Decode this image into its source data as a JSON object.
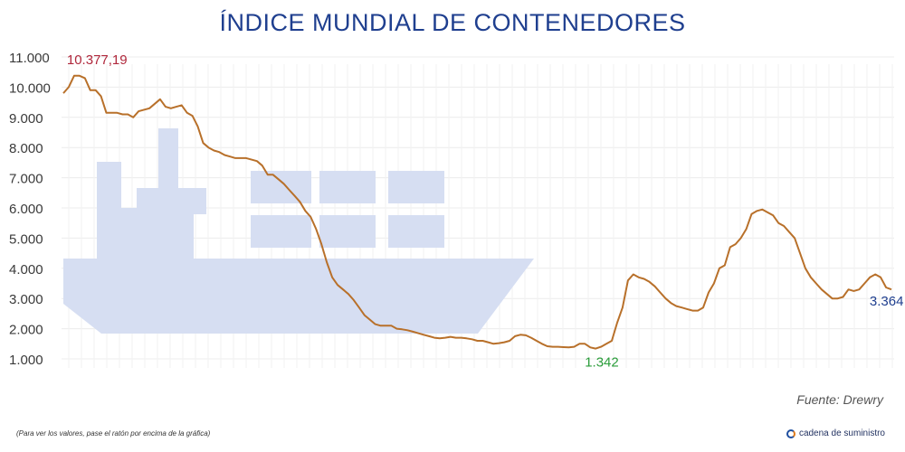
{
  "title": "ÍNDICE MUNDIAL DE CONTENEDORES",
  "source": "Fuente: Drewry",
  "footnote": "(Para ver los valores, pase el ratón por encima de la gráfica)",
  "brand": "cadena de suministro",
  "chart_data": {
    "type": "line",
    "title": "ÍNDICE MUNDIAL DE CONTENEDORES",
    "xlabel": "",
    "ylabel": "",
    "ylim": [
      1000,
      11000
    ],
    "yticks": [
      1000,
      2000,
      3000,
      4000,
      5000,
      6000,
      7000,
      8000,
      9000,
      10000,
      11000
    ],
    "ytick_labels": [
      "1.000",
      "2.000",
      "3.000",
      "4.000",
      "5.000",
      "6.000",
      "7.000",
      "8.000",
      "9.000",
      "10.000",
      "11.000"
    ],
    "grid": true,
    "line_color": "#b8702a",
    "series": [
      {
        "values": [
          9800,
          10000,
          10377,
          10377,
          10300,
          9900,
          9900,
          9700,
          9150,
          9150,
          9150,
          9100,
          9100,
          9000,
          9200,
          9250,
          9300,
          9450,
          9600,
          9350,
          9300,
          9350,
          9400,
          9150,
          9050,
          8700,
          8150,
          8000,
          7900,
          7850,
          7750,
          7700,
          7650,
          7650,
          7650,
          7600,
          7550,
          7400,
          7100,
          7100,
          6950,
          6800,
          6600,
          6400,
          6200,
          5900,
          5700,
          5300,
          4800,
          4200,
          3700,
          3450,
          3300,
          3150,
          2950,
          2700,
          2450,
          2300,
          2150,
          2100,
          2100,
          2100,
          2000,
          1980,
          1950,
          1900,
          1850,
          1800,
          1750,
          1700,
          1680,
          1700,
          1730,
          1700,
          1700,
          1680,
          1650,
          1600,
          1600,
          1550,
          1500,
          1520,
          1550,
          1600,
          1750,
          1800,
          1780,
          1700,
          1600,
          1500,
          1420,
          1400,
          1400,
          1390,
          1380,
          1400,
          1500,
          1500,
          1380,
          1342,
          1400,
          1500,
          1600,
          2200,
          2700,
          3600,
          3800,
          3700,
          3650,
          3550,
          3400,
          3200,
          3000,
          2850,
          2750,
          2700,
          2650,
          2600,
          2600,
          2700,
          3200,
          3500,
          4000,
          4100,
          4700,
          4800,
          5000,
          5300,
          5800,
          5900,
          5950,
          5850,
          5750,
          5500,
          5400,
          5200,
          5000,
          4500,
          4000,
          3700,
          3500,
          3300,
          3150,
          3000,
          3000,
          3050,
          3300,
          3250,
          3300,
          3500,
          3700,
          3800,
          3700,
          3364,
          3300
        ]
      }
    ],
    "annotations": [
      {
        "text": "10.377,19",
        "index": 2,
        "value": 10377.19,
        "color": "#b0283c"
      },
      {
        "text": "1.342",
        "index": 99,
        "value": 1342,
        "color": "#2a9d3a"
      },
      {
        "text": "3.364",
        "index": 156,
        "value": 3364,
        "color": "#1f3f8f"
      }
    ]
  }
}
